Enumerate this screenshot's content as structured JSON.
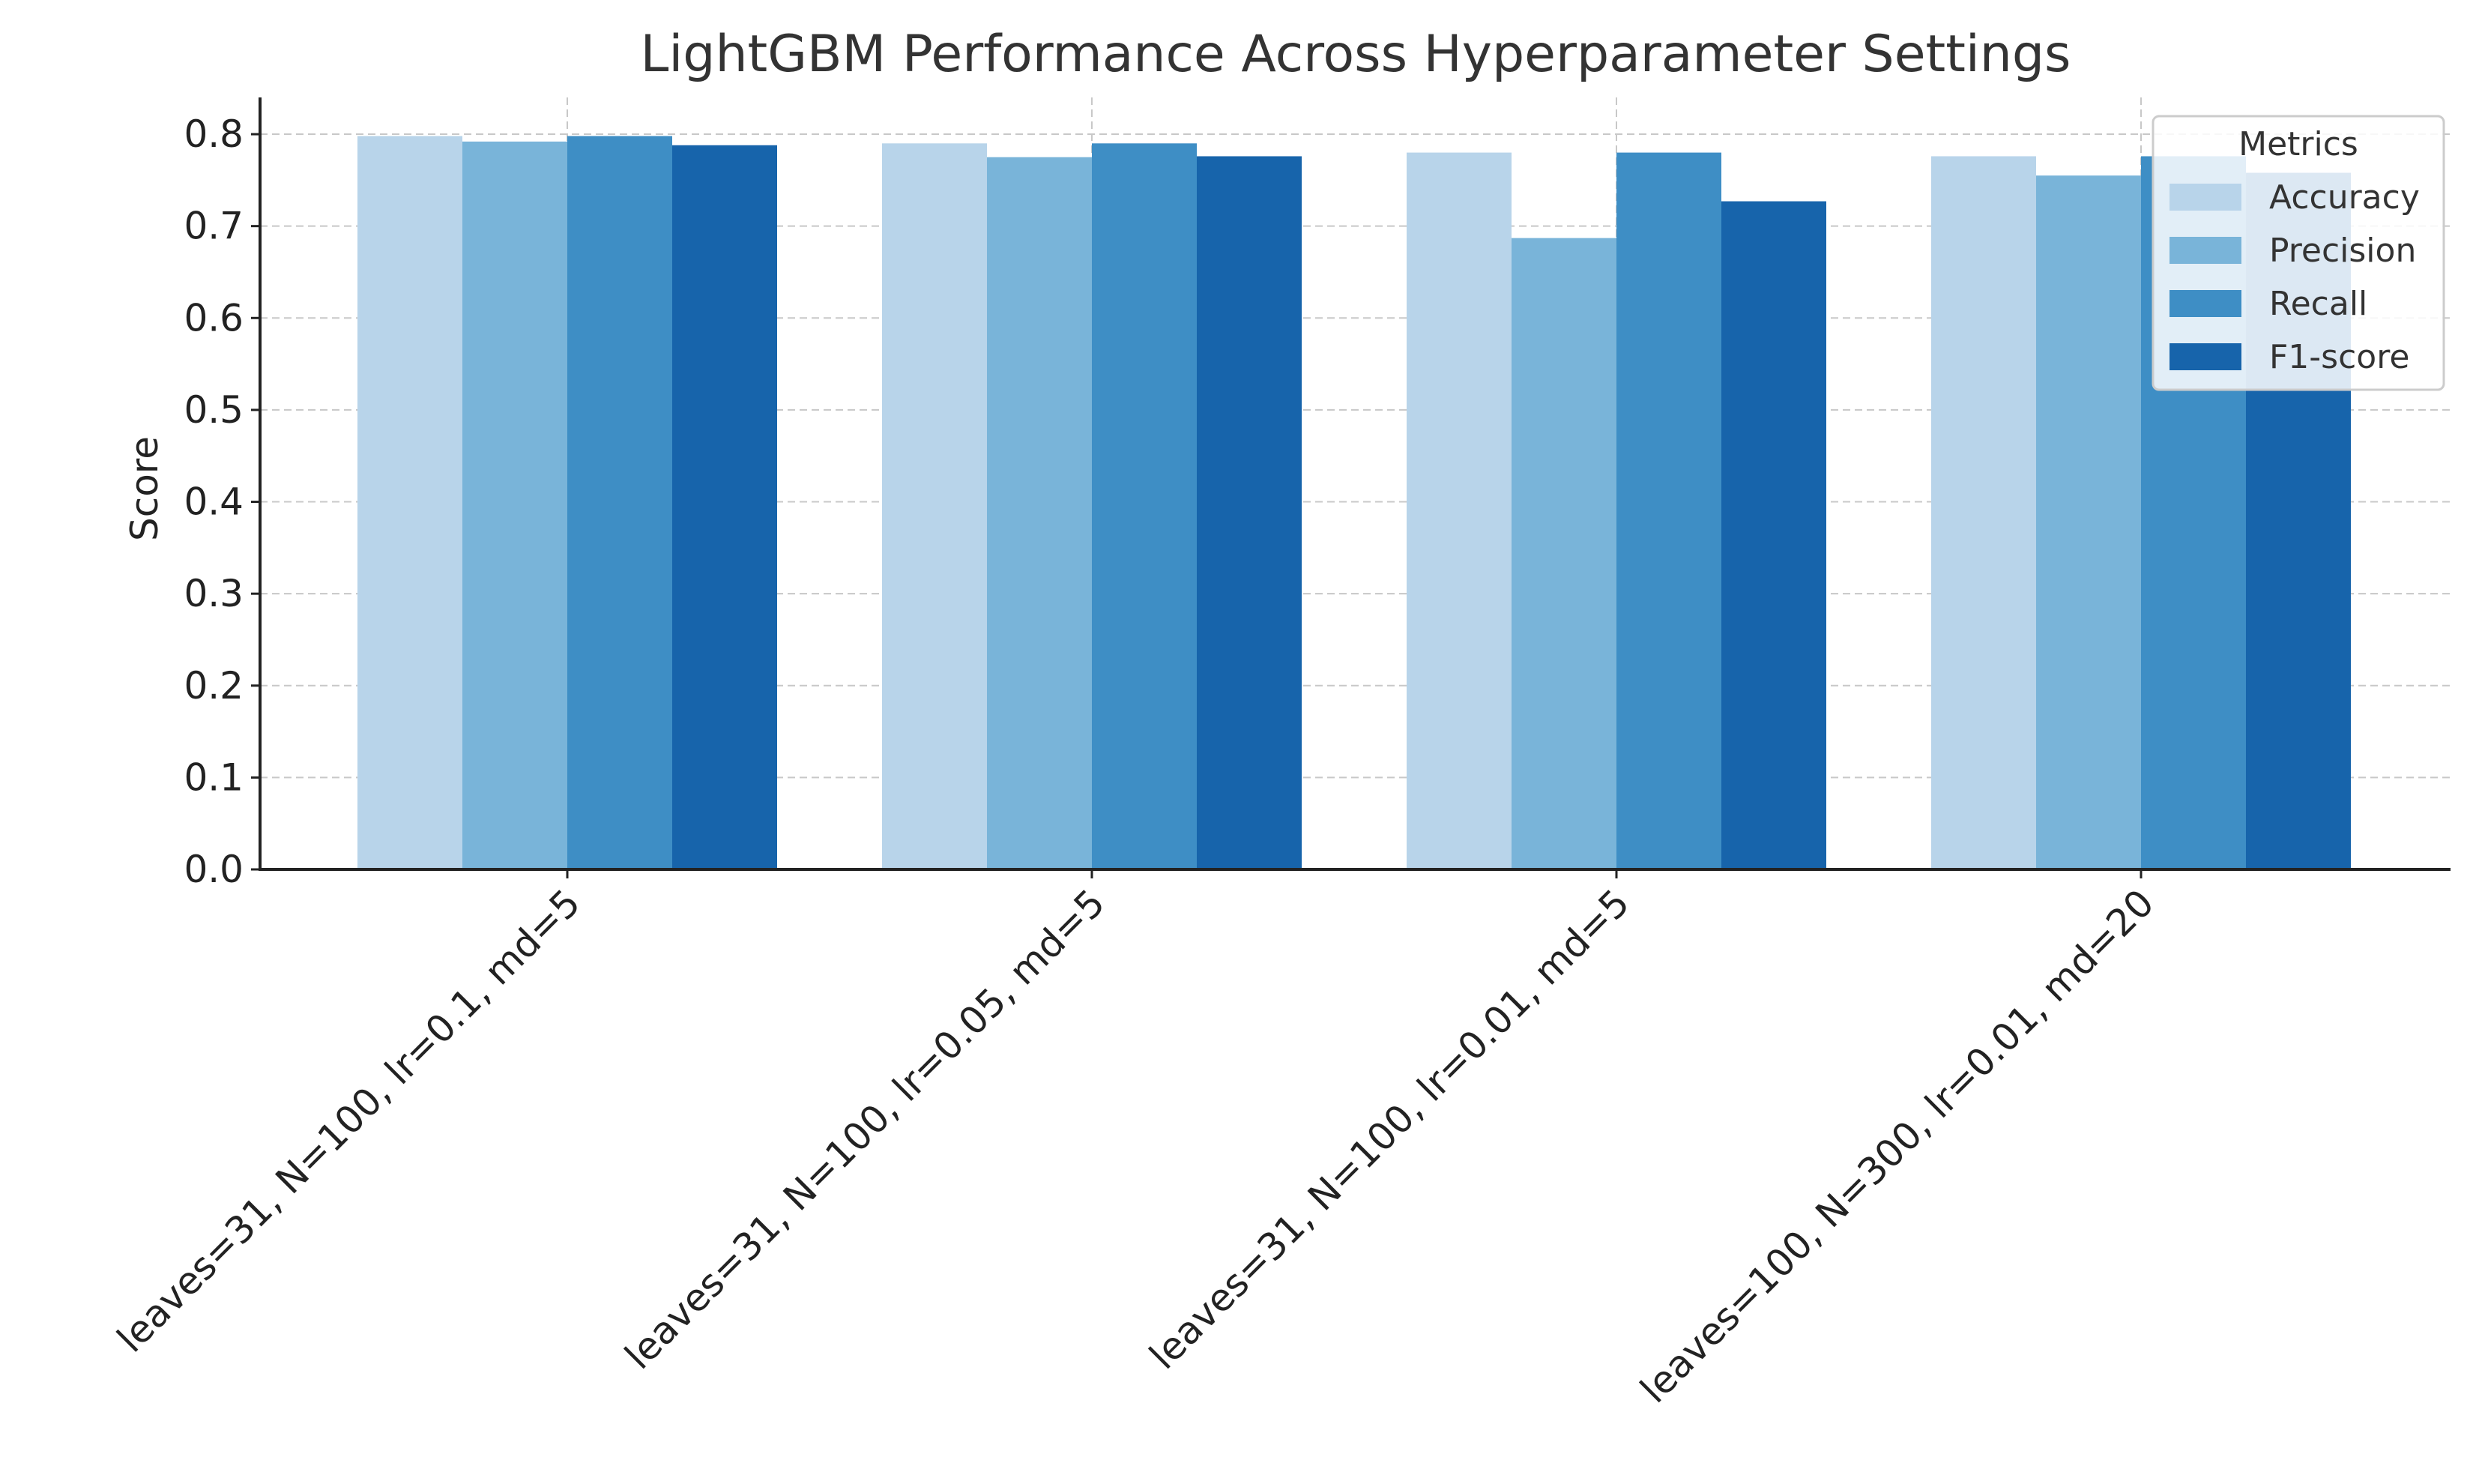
{
  "chart_data": {
    "type": "bar",
    "title": "LightGBM Performance Across Hyperparameter Settings",
    "xlabel": "",
    "ylabel": "Score",
    "ylim": [
      0,
      0.84
    ],
    "yticks": [
      "0.0",
      "0.1",
      "0.2",
      "0.3",
      "0.4",
      "0.5",
      "0.6",
      "0.7",
      "0.8"
    ],
    "grid": true,
    "legend": {
      "title": "Metrics",
      "placement": "upper-right"
    },
    "categories": [
      "leaves=31, N=100, lr=0.1, md=5",
      "leaves=31, N=100, lr=0.05, md=5",
      "leaves=31, N=100, lr=0.01, md=5",
      "leaves=100, N=300, lr=0.01, md=20"
    ],
    "series": [
      {
        "name": "Accuracy",
        "color": "#b8d4ea",
        "values": [
          0.798,
          0.79,
          0.78,
          0.776
        ]
      },
      {
        "name": "Precision",
        "color": "#79b4d9",
        "values": [
          0.792,
          0.775,
          0.687,
          0.755
        ]
      },
      {
        "name": "Recall",
        "color": "#3e8ec5",
        "values": [
          0.798,
          0.79,
          0.78,
          0.776
        ]
      },
      {
        "name": "F1-score",
        "color": "#1764ab",
        "values": [
          0.788,
          0.776,
          0.727,
          0.758
        ]
      }
    ]
  }
}
